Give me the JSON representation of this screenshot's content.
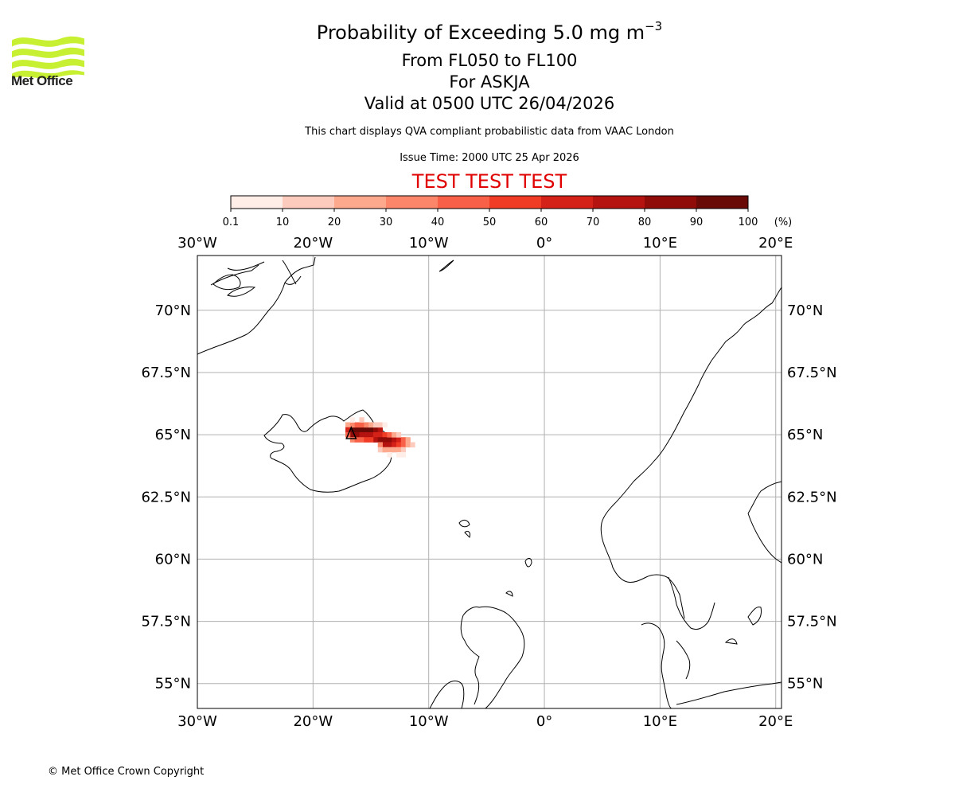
{
  "header": {
    "title_prefix": "Probability of Exceeding 5.0 mg m",
    "title_exponent": "−3",
    "flight_levels": "From FL050 to FL100",
    "volcano": "For ASKJA",
    "valid_time": "Valid at 0500 UTC 26/04/2026",
    "subtitle": "This chart displays QVA compliant probabilistic data from VAAC London",
    "issue_time": "Issue Time: 2000 UTC 25 Apr 2026",
    "test_banner": "TEST TEST TEST"
  },
  "logo": {
    "name": "Met Office",
    "color": "#c8f032"
  },
  "footer": {
    "copyright": "© Met Office Crown Copyright"
  },
  "colorbar": {
    "tick_labels": [
      "0.1",
      "10",
      "20",
      "30",
      "40",
      "50",
      "60",
      "70",
      "80",
      "90",
      "100"
    ],
    "unit": "(%)",
    "colors": [
      "#ffeee8",
      "#fdcbbd",
      "#fca98e",
      "#fb866a",
      "#f86047",
      "#f03b25",
      "#d52219",
      "#b5130f",
      "#8f0c09",
      "#6a0a06"
    ]
  },
  "map": {
    "projection": "equirectangular",
    "lon_range": [
      -30,
      20.5
    ],
    "lat_range": [
      54,
      72.2
    ],
    "lon_ticks": [
      {
        "value": -30,
        "label": "30°W"
      },
      {
        "value": -20,
        "label": "20°W"
      },
      {
        "value": -10,
        "label": "10°W"
      },
      {
        "value": 0,
        "label": "0°"
      },
      {
        "value": 10,
        "label": "10°E"
      },
      {
        "value": 20,
        "label": "20°E"
      }
    ],
    "lat_ticks": [
      {
        "value": 70,
        "label": "70°N"
      },
      {
        "value": 67.5,
        "label": "67.5°N"
      },
      {
        "value": 65,
        "label": "65°N"
      },
      {
        "value": 62.5,
        "label": "62.5°N"
      },
      {
        "value": 60,
        "label": "60°N"
      },
      {
        "value": 57.5,
        "label": "57.5°N"
      },
      {
        "value": 55,
        "label": "55°N"
      }
    ],
    "volcano_location": {
      "lon": -16.7,
      "lat": 65.1
    }
  },
  "chart_data": {
    "type": "heatmap",
    "title": "Probability of Exceeding 5.0 mg m−3",
    "value_unit": "%",
    "cell_size_deg": [
      0.4,
      0.2
    ],
    "cells": [
      {
        "lon": -16.6,
        "lat": 65.2,
        "p": 95
      },
      {
        "lon": -16.2,
        "lat": 65.2,
        "p": 92
      },
      {
        "lon": -15.8,
        "lat": 65.2,
        "p": 95
      },
      {
        "lon": -15.4,
        "lat": 65.2,
        "p": 95
      },
      {
        "lon": -15.0,
        "lat": 65.2,
        "p": 92
      },
      {
        "lon": -14.6,
        "lat": 65.2,
        "p": 88
      },
      {
        "lon": -14.2,
        "lat": 65.2,
        "p": 75
      },
      {
        "lon": -16.6,
        "lat": 65.0,
        "p": 85
      },
      {
        "lon": -16.2,
        "lat": 65.0,
        "p": 82
      },
      {
        "lon": -15.8,
        "lat": 65.0,
        "p": 78
      },
      {
        "lon": -15.4,
        "lat": 65.0,
        "p": 72
      },
      {
        "lon": -15.0,
        "lat": 65.0,
        "p": 70
      },
      {
        "lon": -14.6,
        "lat": 65.0,
        "p": 65
      },
      {
        "lon": -14.2,
        "lat": 65.0,
        "p": 60
      },
      {
        "lon": -13.8,
        "lat": 65.0,
        "p": 55
      },
      {
        "lon": -14.6,
        "lat": 64.8,
        "p": 75
      },
      {
        "lon": -14.2,
        "lat": 64.8,
        "p": 82
      },
      {
        "lon": -13.8,
        "lat": 64.8,
        "p": 85
      },
      {
        "lon": -13.4,
        "lat": 64.8,
        "p": 80
      },
      {
        "lon": -13.0,
        "lat": 64.8,
        "p": 75
      },
      {
        "lon": -12.6,
        "lat": 64.8,
        "p": 65
      },
      {
        "lon": -13.8,
        "lat": 64.6,
        "p": 70
      },
      {
        "lon": -13.4,
        "lat": 64.6,
        "p": 72
      },
      {
        "lon": -13.0,
        "lat": 64.6,
        "p": 68
      },
      {
        "lon": -12.6,
        "lat": 64.6,
        "p": 58
      },
      {
        "lon": -12.2,
        "lat": 64.6,
        "p": 45
      },
      {
        "lon": -17.0,
        "lat": 65.4,
        "p": 25
      },
      {
        "lon": -16.6,
        "lat": 65.4,
        "p": 35
      },
      {
        "lon": -16.2,
        "lat": 65.4,
        "p": 40
      },
      {
        "lon": -15.8,
        "lat": 65.4,
        "p": 45
      },
      {
        "lon": -15.4,
        "lat": 65.4,
        "p": 35
      },
      {
        "lon": -15.0,
        "lat": 65.4,
        "p": 25
      },
      {
        "lon": -14.6,
        "lat": 65.4,
        "p": 18
      },
      {
        "lon": -14.2,
        "lat": 65.4,
        "p": 12
      },
      {
        "lon": -13.8,
        "lat": 65.4,
        "p": 8
      },
      {
        "lon": -17.0,
        "lat": 65.2,
        "p": 60
      },
      {
        "lon": -17.0,
        "lat": 65.0,
        "p": 45
      },
      {
        "lon": -16.6,
        "lat": 64.8,
        "p": 35
      },
      {
        "lon": -16.2,
        "lat": 64.8,
        "p": 40
      },
      {
        "lon": -15.8,
        "lat": 64.8,
        "p": 45
      },
      {
        "lon": -15.4,
        "lat": 64.8,
        "p": 50
      },
      {
        "lon": -15.0,
        "lat": 64.8,
        "p": 55
      },
      {
        "lon": -13.4,
        "lat": 65.0,
        "p": 40
      },
      {
        "lon": -13.0,
        "lat": 65.0,
        "p": 28
      },
      {
        "lon": -12.6,
        "lat": 65.0,
        "p": 18
      },
      {
        "lon": -12.2,
        "lat": 64.8,
        "p": 40
      },
      {
        "lon": -11.8,
        "lat": 64.8,
        "p": 22
      },
      {
        "lon": -14.2,
        "lat": 64.6,
        "p": 35
      },
      {
        "lon": -11.8,
        "lat": 64.6,
        "p": 25
      },
      {
        "lon": -11.4,
        "lat": 64.6,
        "p": 12
      },
      {
        "lon": -14.2,
        "lat": 64.4,
        "p": 15
      },
      {
        "lon": -13.8,
        "lat": 64.4,
        "p": 25
      },
      {
        "lon": -13.4,
        "lat": 64.4,
        "p": 28
      },
      {
        "lon": -13.0,
        "lat": 64.4,
        "p": 25
      },
      {
        "lon": -12.6,
        "lat": 64.4,
        "p": 20
      },
      {
        "lon": -12.2,
        "lat": 64.4,
        "p": 12
      },
      {
        "lon": -13.4,
        "lat": 64.2,
        "p": 8
      },
      {
        "lon": -12.6,
        "lat": 64.2,
        "p": 6
      },
      {
        "lon": -12.2,
        "lat": 64.2,
        "p": 5
      },
      {
        "lon": -16.6,
        "lat": 65.6,
        "p": 8
      },
      {
        "lon": -15.8,
        "lat": 65.6,
        "p": 10
      }
    ]
  }
}
